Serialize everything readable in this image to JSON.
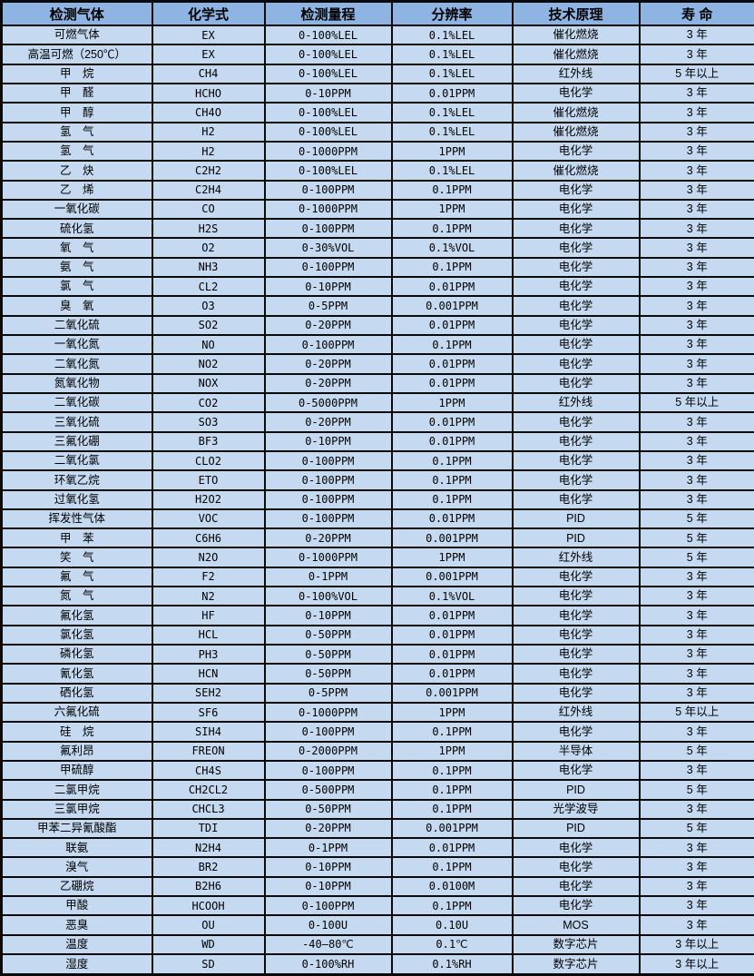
{
  "colors": {
    "header_bg": "#8DB4E2",
    "cell_bg": "#C5D9F1",
    "border": "#0a0a0a",
    "text": "#000000"
  },
  "table": {
    "columns": [
      {
        "key": "gas",
        "label": "检测气体"
      },
      {
        "key": "formula",
        "label": "化学式"
      },
      {
        "key": "range",
        "label": "检测量程"
      },
      {
        "key": "resolution",
        "label": "分辨率"
      },
      {
        "key": "principle",
        "label": "技术原理"
      },
      {
        "key": "lifespan",
        "label": "寿 命"
      }
    ],
    "rows": [
      [
        "可燃气体",
        "EX",
        "0-100%LEL",
        "0.1%LEL",
        "催化燃烧",
        "3 年"
      ],
      [
        "高温可燃（250℃）",
        "EX",
        "0-100%LEL",
        "0.1%LEL",
        "催化燃烧",
        "3 年"
      ],
      [
        "甲　烷",
        "CH4",
        "0-100%LEL",
        "0.1%LEL",
        "红外线",
        "5 年以上"
      ],
      [
        "甲　醛",
        "HCHO",
        "0-10PPM",
        "0.01PPM",
        "电化学",
        "3 年"
      ],
      [
        "甲　醇",
        "CH4O",
        "0-100%LEL",
        "0.1%LEL",
        "催化燃烧",
        "3 年"
      ],
      [
        "氢　气",
        "H2",
        "0-100%LEL",
        "0.1%LEL",
        "催化燃烧",
        "3 年"
      ],
      [
        "氢　气",
        "H2",
        "0-1000PPM",
        "1PPM",
        "电化学",
        "3 年"
      ],
      [
        "乙　炔",
        "C2H2",
        "0-100%LEL",
        "0.1%LEL",
        "催化燃烧",
        "3 年"
      ],
      [
        "乙　烯",
        "C2H4",
        "0-100PPM",
        "0.1PPM",
        "电化学",
        "3 年"
      ],
      [
        "一氧化碳",
        "CO",
        "0-1000PPM",
        "1PPM",
        "电化学",
        "3 年"
      ],
      [
        "硫化氢",
        "H2S",
        "0-100PPM",
        "0.1PPM",
        "电化学",
        "3 年"
      ],
      [
        "氧　气",
        "O2",
        "0-30%VOL",
        "0.1%VOL",
        "电化学",
        "3 年"
      ],
      [
        "氨　气",
        "NH3",
        "0-100PPM",
        "0.1PPM",
        "电化学",
        "3 年"
      ],
      [
        "氯　气",
        "CL2",
        "0-10PPM",
        "0.01PPM",
        "电化学",
        "3 年"
      ],
      [
        "臭　氧",
        "O3",
        "0-5PPM",
        "0.001PPM",
        "电化学",
        "3 年"
      ],
      [
        "二氧化硫",
        "SO2",
        "0-20PPM",
        "0.01PPM",
        "电化学",
        "3 年"
      ],
      [
        "一氧化氮",
        "NO",
        "0-100PPM",
        "0.1PPM",
        "电化学",
        "3 年"
      ],
      [
        "二氧化氮",
        "NO2",
        "0-20PPM",
        "0.01PPM",
        "电化学",
        "3 年"
      ],
      [
        "氮氧化物",
        "NOX",
        "0-20PPM",
        "0.01PPM",
        "电化学",
        "3 年"
      ],
      [
        "二氧化碳",
        "CO2",
        "0-5000PPM",
        "1PPM",
        "红外线",
        "5 年以上"
      ],
      [
        "三氧化硫",
        "SO3",
        "0-20PPM",
        "0.01PPM",
        "电化学",
        "3 年"
      ],
      [
        "三氟化硼",
        "BF3",
        "0-10PPM",
        "0.01PPM",
        "电化学",
        "3 年"
      ],
      [
        "二氧化氯",
        "CLO2",
        "0-100PPM",
        "0.1PPM",
        "电化学",
        "3 年"
      ],
      [
        "环氧乙烷",
        "ETO",
        "0-100PPM",
        "0.1PPM",
        "电化学",
        "3 年"
      ],
      [
        "过氧化氢",
        "H2O2",
        "0-100PPM",
        "0.1PPM",
        "电化学",
        "3 年"
      ],
      [
        "挥发性气体",
        "VOC",
        "0-100PPM",
        "0.01PPM",
        "PID",
        "5 年"
      ],
      [
        "甲　苯",
        "C6H6",
        "0-20PPM",
        "0.001PPM",
        "PID",
        "5 年"
      ],
      [
        "笑　气",
        "N2O",
        "0-1000PPM",
        "1PPM",
        "红外线",
        "5 年"
      ],
      [
        "氟　气",
        "F2",
        "0-1PPM",
        "0.001PPM",
        "电化学",
        "3 年"
      ],
      [
        "氮　气",
        "N2",
        "0-100%VOL",
        "0.1%VOL",
        "电化学",
        "3 年"
      ],
      [
        "氟化氢",
        "HF",
        "0-10PPM",
        "0.01PPM",
        "电化学",
        "3 年"
      ],
      [
        "氯化氢",
        "HCL",
        "0-50PPM",
        "0.01PPM",
        "电化学",
        "3 年"
      ],
      [
        "磷化氢",
        "PH3",
        "0-50PPM",
        "0.01PPM",
        "电化学",
        "3 年"
      ],
      [
        "氰化氢",
        "HCN",
        "0-50PPM",
        "0.01PPM",
        "电化学",
        "3 年"
      ],
      [
        "硒化氢",
        "SEH2",
        "0-5PPM",
        "0.001PPM",
        "电化学",
        "3 年"
      ],
      [
        "六氟化硫",
        "SF6",
        "0-1000PPM",
        "1PPM",
        "红外线",
        "5 年以上"
      ],
      [
        "硅　烷",
        "SIH4",
        "0-100PPM",
        "0.1PPM",
        "电化学",
        "3 年"
      ],
      [
        "氟利昂",
        "FREON",
        "0-2000PPM",
        "1PPM",
        "半导体",
        "5 年"
      ],
      [
        "甲硫醇",
        "CH4S",
        "0-100PPM",
        "0.1PPM",
        "电化学",
        "3 年"
      ],
      [
        "二氯甲烷",
        "CH2CL2",
        "0-500PPM",
        "0.1PPM",
        "PID",
        "5 年"
      ],
      [
        "三氯甲烷",
        "CHCL3",
        "0-50PPM",
        "0.1PPM",
        "光学波导",
        "3 年"
      ],
      [
        "甲苯二异氰酸酯",
        "TDI",
        "0-20PPM",
        "0.001PPM",
        "PID",
        "5 年"
      ],
      [
        "联氨",
        "N2H4",
        "0-1PPM",
        "0.01PPM",
        "电化学",
        "3 年"
      ],
      [
        "溴气",
        "BR2",
        "0-10PPM",
        "0.1PPM",
        "电化学",
        "3 年"
      ],
      [
        "乙硼烷",
        "B2H6",
        "0-10PPM",
        "0.0100M",
        "电化学",
        "3 年"
      ],
      [
        "甲酸",
        "HCOOH",
        "0-100PPM",
        "0.1PPM",
        "电化学",
        "3 年"
      ],
      [
        "恶臭",
        "OU",
        "0-100U",
        "0.10U",
        "MOS",
        "3 年"
      ],
      [
        "温度",
        "WD",
        "-40—80℃",
        "0.1℃",
        "数字芯片",
        "3 年以上"
      ],
      [
        "湿度",
        "SD",
        "0-100%RH",
        "0.1%RH",
        "数字芯片",
        "3 年以上"
      ]
    ]
  }
}
